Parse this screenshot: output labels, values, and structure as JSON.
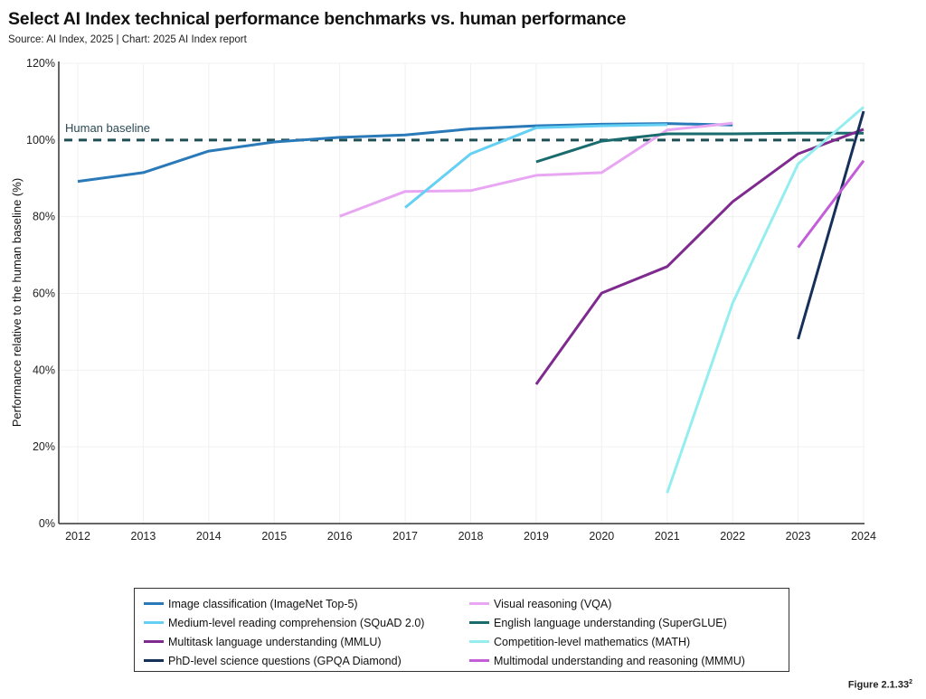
{
  "header": {
    "title": "Select AI Index technical performance benchmarks vs. human performance",
    "subtitle": "Source: AI Index, 2025 | Chart: 2025 AI Index report"
  },
  "footer": {
    "figure_label": "Figure 2.1.33",
    "figure_sup": "2"
  },
  "chart_data": {
    "type": "line",
    "title": "Select AI Index technical performance benchmarks vs. human performance",
    "xlabel": "",
    "ylabel": "Performance relative to the human baseline (%)",
    "x": [
      2012,
      2013,
      2014,
      2015,
      2016,
      2017,
      2018,
      2019,
      2020,
      2021,
      2022,
      2023,
      2024
    ],
    "xlim": [
      2012,
      2024
    ],
    "ylim": [
      0,
      120
    ],
    "yticks": [
      0,
      20,
      40,
      60,
      80,
      100,
      120
    ],
    "ytick_labels": [
      "0%",
      "20%",
      "40%",
      "60%",
      "80%",
      "100%",
      "120%"
    ],
    "xtick_labels": [
      "2012",
      "2013",
      "2014",
      "2015",
      "2016",
      "2017",
      "2018",
      "2019",
      "2020",
      "2021",
      "2022",
      "2023",
      "2024"
    ],
    "grid": true,
    "legend_position": "bottom",
    "reference_line": {
      "label": "Human baseline",
      "value": 100,
      "style": "dashed",
      "color": "#1f4e53"
    },
    "series": [
      {
        "name": "Image classification (ImageNet Top-5)",
        "color": "#2a7ab9",
        "points": [
          [
            2012,
            89.2
          ],
          [
            2013,
            91.5
          ],
          [
            2014,
            97.1
          ],
          [
            2015,
            99.5
          ],
          [
            2016,
            100.7
          ],
          [
            2017,
            101.3
          ],
          [
            2018,
            102.9
          ],
          [
            2019,
            103.7
          ],
          [
            2020,
            104.1
          ],
          [
            2021,
            104.3
          ],
          [
            2022,
            103.9
          ]
        ]
      },
      {
        "name": "Visual reasoning (VQA)",
        "color": "#e8a6f3",
        "points": [
          [
            2016,
            80.1
          ],
          [
            2017,
            86.6
          ],
          [
            2018,
            86.8
          ],
          [
            2019,
            90.8
          ],
          [
            2020,
            91.5
          ],
          [
            2021,
            102.6
          ],
          [
            2022,
            104.4
          ]
        ]
      },
      {
        "name": "Medium-level reading comprehension (SQuAD 2.0)",
        "color": "#64d0f4",
        "points": [
          [
            2017,
            82.4
          ],
          [
            2018,
            96.4
          ],
          [
            2019,
            103.2
          ],
          [
            2020,
            103.7
          ],
          [
            2021,
            104.0
          ]
        ]
      },
      {
        "name": "English language understanding (SuperGLUE)",
        "color": "#1a6b6e",
        "points": [
          [
            2019,
            94.3
          ],
          [
            2020,
            99.7
          ],
          [
            2021,
            101.6
          ],
          [
            2022,
            101.6
          ],
          [
            2023,
            101.8
          ],
          [
            2024,
            101.8
          ]
        ]
      },
      {
        "name": "Multitask language understanding (MMLU)",
        "color": "#7e2a8e",
        "points": [
          [
            2019,
            36.3
          ],
          [
            2020,
            60.1
          ],
          [
            2021,
            67.0
          ],
          [
            2022,
            83.9
          ],
          [
            2023,
            96.4
          ],
          [
            2024,
            102.8
          ]
        ]
      },
      {
        "name": "Competition-level mathematics (MATH)",
        "color": "#94eef0",
        "points": [
          [
            2021,
            8.0
          ],
          [
            2022,
            57.5
          ],
          [
            2023,
            93.8
          ],
          [
            2024,
            108.6
          ]
        ]
      },
      {
        "name": "PhD-level science questions (GPQA Diamond)",
        "color": "#16305a",
        "points": [
          [
            2023,
            48.1
          ],
          [
            2024,
            107.5
          ]
        ]
      },
      {
        "name": "Multimodal understanding and reasoning (MMMU)",
        "color": "#c25ed8",
        "points": [
          [
            2023,
            72.0
          ],
          [
            2024,
            94.6
          ]
        ]
      }
    ],
    "legend_order": [
      0,
      1,
      2,
      3,
      4,
      5,
      6,
      7
    ]
  }
}
